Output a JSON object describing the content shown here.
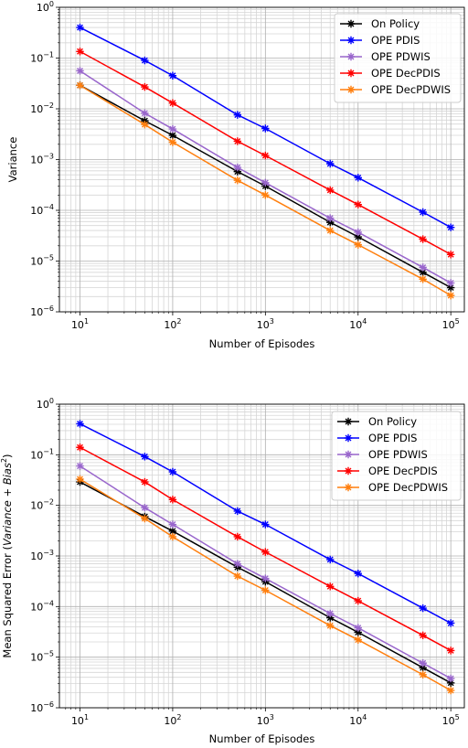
{
  "chart_data": [
    {
      "type": "line",
      "xscale": "log",
      "yscale": "log",
      "xlim": [
        6,
        140000
      ],
      "ylim": [
        1e-06,
        1
      ],
      "grid": true,
      "legend_position": "top-right",
      "xlabel": "Number of Episodes",
      "ylabel": "Variance",
      "xtick_labels": [
        {
          "value": 10,
          "base": "10",
          "exp": "1"
        },
        {
          "value": 100,
          "base": "10",
          "exp": "2"
        },
        {
          "value": 1000,
          "base": "10",
          "exp": "3"
        },
        {
          "value": 10000,
          "base": "10",
          "exp": "4"
        },
        {
          "value": 100000,
          "base": "10",
          "exp": "5"
        }
      ],
      "ytick_labels": [
        {
          "value": 1,
          "base": "10",
          "exp": "0"
        },
        {
          "value": 0.1,
          "base": "10",
          "exp": "−1"
        },
        {
          "value": 0.01,
          "base": "10",
          "exp": "−2"
        },
        {
          "value": 0.001,
          "base": "10",
          "exp": "−3"
        },
        {
          "value": 0.0001,
          "base": "10",
          "exp": "−4"
        },
        {
          "value": 1e-05,
          "base": "10",
          "exp": "−5"
        },
        {
          "value": 1e-06,
          "base": "10",
          "exp": "−6"
        }
      ],
      "x": [
        10,
        50,
        100,
        500,
        1000,
        5000,
        10000,
        50000,
        100000
      ],
      "series": [
        {
          "name": "On Policy",
          "color": "#000000",
          "values": [
            0.029,
            0.0058,
            0.003,
            0.00058,
            0.0003,
            5.8e-05,
            3e-05,
            6e-06,
            3e-06
          ]
        },
        {
          "name": "OPE PDIS",
          "color": "#0000ff",
          "values": [
            0.4,
            0.09,
            0.045,
            0.0076,
            0.0041,
            0.00083,
            0.00044,
            9.2e-05,
            4.6e-05
          ]
        },
        {
          "name": "OPE PDWIS",
          "color": "#9966cc",
          "values": [
            0.056,
            0.0082,
            0.004,
            0.0007,
            0.00035,
            7e-05,
            3.7e-05,
            7.5e-06,
            3.7e-06
          ]
        },
        {
          "name": "OPE DecPDIS",
          "color": "#ff0000",
          "values": [
            0.135,
            0.027,
            0.013,
            0.0023,
            0.0012,
            0.00025,
            0.00013,
            2.7e-05,
            1.35e-05
          ]
        },
        {
          "name": "OPE DecPDWIS",
          "color": "#ff7f0e",
          "values": [
            0.029,
            0.0049,
            0.0022,
            0.00039,
            0.0002,
            4e-05,
            2.1e-05,
            4.4e-06,
            2.1e-06
          ]
        }
      ]
    },
    {
      "type": "line",
      "xscale": "log",
      "yscale": "log",
      "xlim": [
        6,
        140000
      ],
      "ylim": [
        1e-06,
        1
      ],
      "grid": true,
      "legend_position": "top-right",
      "xlabel": "Number of Episodes",
      "ylabel_parts": {
        "pre": "Mean Squared Error (",
        "var": "Variance",
        "mid": " + ",
        "bias": "Bias",
        "sup": "2",
        "post": ")"
      },
      "xtick_labels": [
        {
          "value": 10,
          "base": "10",
          "exp": "1"
        },
        {
          "value": 100,
          "base": "10",
          "exp": "2"
        },
        {
          "value": 1000,
          "base": "10",
          "exp": "3"
        },
        {
          "value": 10000,
          "base": "10",
          "exp": "4"
        },
        {
          "value": 100000,
          "base": "10",
          "exp": "5"
        }
      ],
      "ytick_labels": [
        {
          "value": 1,
          "base": "10",
          "exp": "0"
        },
        {
          "value": 0.1,
          "base": "10",
          "exp": "−1"
        },
        {
          "value": 0.01,
          "base": "10",
          "exp": "−2"
        },
        {
          "value": 0.001,
          "base": "10",
          "exp": "−3"
        },
        {
          "value": 0.0001,
          "base": "10",
          "exp": "−4"
        },
        {
          "value": 1e-05,
          "base": "10",
          "exp": "−5"
        },
        {
          "value": 1e-06,
          "base": "10",
          "exp": "−6"
        }
      ],
      "x": [
        10,
        50,
        100,
        500,
        1000,
        5000,
        10000,
        50000,
        100000
      ],
      "series": [
        {
          "name": "On Policy",
          "color": "#000000",
          "values": [
            0.029,
            0.006,
            0.0031,
            0.0006,
            0.00031,
            6e-05,
            3.1e-05,
            6.2e-06,
            3.1e-06
          ]
        },
        {
          "name": "OPE PDIS",
          "color": "#0000ff",
          "values": [
            0.41,
            0.092,
            0.046,
            0.0077,
            0.0042,
            0.00085,
            0.00045,
            9.3e-05,
            4.7e-05
          ]
        },
        {
          "name": "OPE PDWIS",
          "color": "#9966cc",
          "values": [
            0.06,
            0.009,
            0.0042,
            0.0007,
            0.00036,
            7.3e-05,
            3.8e-05,
            7.6e-06,
            3.8e-06
          ]
        },
        {
          "name": "OPE DecPDIS",
          "color": "#ff0000",
          "values": [
            0.14,
            0.029,
            0.013,
            0.0024,
            0.0012,
            0.00025,
            0.00013,
            2.7e-05,
            1.35e-05
          ]
        },
        {
          "name": "OPE DecPDWIS",
          "color": "#ff7f0e",
          "values": [
            0.033,
            0.0055,
            0.0024,
            0.0004,
            0.00021,
            4.2e-05,
            2.2e-05,
            4.5e-06,
            2.2e-06
          ]
        }
      ]
    }
  ]
}
